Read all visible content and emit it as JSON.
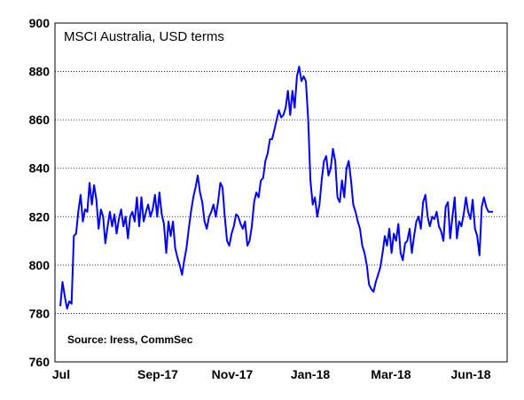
{
  "chart_data": {
    "type": "line",
    "title": "MSCI Australia, USD terms",
    "source": "Source: Iress, CommSec",
    "xlabel": "",
    "ylabel": "",
    "ylim": [
      760,
      900
    ],
    "y_ticks": [
      "760",
      "780",
      "800",
      "820",
      "840",
      "860",
      "880",
      "900"
    ],
    "x_ticks": [
      "Jul",
      "Sep-17",
      "Nov-17",
      "Jan-18",
      "Mar-18",
      "Jun-18"
    ],
    "grid": "horizontal dashed",
    "line_color": "#0000ff",
    "series": [
      {
        "values": [
          783,
          793,
          787,
          782,
          785,
          784,
          812,
          813,
          822,
          829,
          818,
          823,
          822,
          834,
          825,
          833,
          827,
          815,
          823,
          820,
          809,
          816,
          822,
          816,
          821,
          813,
          819,
          823,
          816,
          820,
          811,
          820,
          822,
          818,
          828,
          816,
          828,
          818,
          822,
          825,
          820,
          823,
          829,
          820,
          830,
          821,
          817,
          805,
          818,
          812,
          818,
          807,
          803,
          800,
          796,
          802,
          807,
          815,
          822,
          828,
          832,
          837,
          830,
          826,
          818,
          815,
          820,
          822,
          825,
          820,
          826,
          834,
          832,
          820,
          810,
          808,
          813,
          816,
          821,
          820,
          817,
          815,
          818,
          808,
          810,
          816,
          826,
          830,
          828,
          835,
          836,
          843,
          846,
          852,
          852,
          856,
          860,
          864,
          861,
          862,
          865,
          872,
          862,
          872,
          865,
          878,
          882,
          876,
          878,
          876,
          860,
          835,
          825,
          828,
          820,
          825,
          835,
          843,
          845,
          837,
          840,
          848,
          843,
          828,
          826,
          835,
          828,
          840,
          843,
          835,
          825,
          822,
          818,
          815,
          808,
          805,
          800,
          792,
          790,
          789,
          793,
          796,
          799,
          805,
          812,
          808,
          815,
          805,
          813,
          810,
          817,
          805,
          802,
          809,
          810,
          815,
          805,
          812,
          818,
          820,
          815,
          826,
          829,
          820,
          816,
          820,
          819,
          822,
          816,
          814,
          810,
          824,
          826,
          811,
          820,
          828,
          811,
          818,
          816,
          821,
          828,
          822,
          819,
          827,
          815,
          812,
          804,
          824,
          828,
          824,
          822,
          822,
          822
        ]
      }
    ]
  }
}
